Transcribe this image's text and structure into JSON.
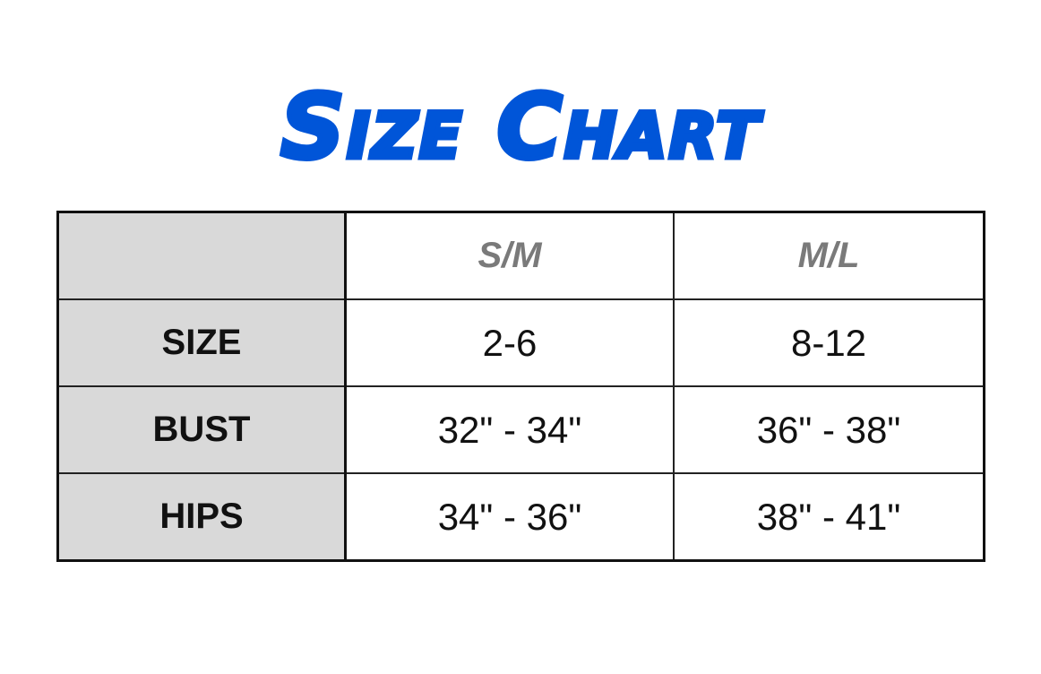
{
  "title": "Size Chart",
  "title_color": "#0055d8",
  "header_fill_color": "#d9d9d9",
  "columns": [
    "",
    "S/M",
    "M/L"
  ],
  "rows": [
    {
      "label": "SIZE",
      "values": [
        "2-6",
        "8-12"
      ]
    },
    {
      "label": "BUST",
      "values": [
        "32\" - 34\"",
        "36\" - 38\""
      ]
    },
    {
      "label": "HIPS",
      "values": [
        "34\" - 36\"",
        "38\" - 41\""
      ]
    }
  ]
}
